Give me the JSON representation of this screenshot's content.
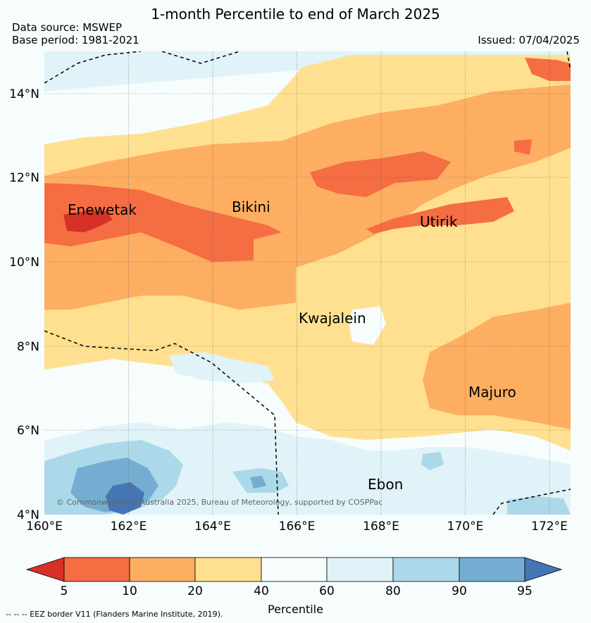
{
  "title": "1-month Percentile to end of March 2025",
  "data_source": "Data source: MSWEP",
  "base_period": "Base period: 1981-2021",
  "issued": "Issued: 07/04/2025",
  "copyright": "© Commonwealth of Australia 2025, Bureau of Meteorology, supported by COSPPac",
  "footnote": "--  --  -- EEZ border V11 (Flanders Marine Institute, 2019).",
  "colorbar": {
    "label": "Percentile",
    "ticks": [
      "5",
      "10",
      "20",
      "40",
      "60",
      "80",
      "90",
      "95"
    ],
    "colors": [
      "#d73027",
      "#f46d43",
      "#fdae61",
      "#fee090",
      "#f7fcfd",
      "#e0f3f8",
      "#abd9e9",
      "#74add1",
      "#4575b4"
    ]
  },
  "axes": {
    "lon_labels": [
      "160°E",
      "162°E",
      "164°E",
      "166°E",
      "168°E",
      "170°E",
      "172°E"
    ],
    "lat_labels": [
      "14°N",
      "12°N",
      "10°N",
      "8°N",
      "6°N",
      "4°N"
    ]
  },
  "places": [
    {
      "name": "Enewetak"
    },
    {
      "name": "Bikini"
    },
    {
      "name": "Utirik"
    },
    {
      "name": "Kwajalein"
    },
    {
      "name": "Majuro"
    },
    {
      "name": "Ebon"
    }
  ]
}
